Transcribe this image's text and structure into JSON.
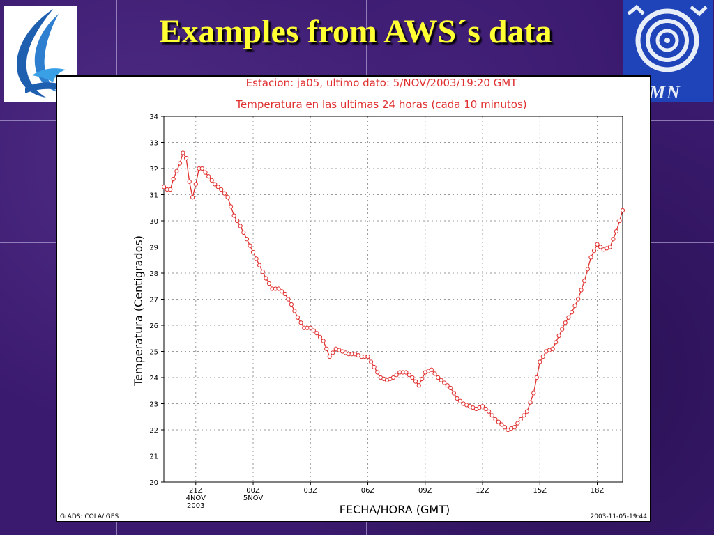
{
  "slide": {
    "title": "Examples from AWS´s data"
  },
  "logos": {
    "left_icon": "bird-wave-logo",
    "right_icon": "spiral-logo",
    "right_text": "MN"
  },
  "colors": {
    "background": "#3a1a6e",
    "title": "#ffff33",
    "series": "#e03030",
    "right_logo_bg": "#1f43b8"
  },
  "chart_data": {
    "type": "line",
    "title": "Estacion: ja05, ultimo dato: 5/NOV/2003/19:20 GMT",
    "subtitle": "Temperatura en las ultimas 24 horas (cada 10 minutos)",
    "xlabel": "FECHA/HORA (GMT)",
    "ylabel": "Temperatura (Centigrados)",
    "ylim": [
      20,
      34
    ],
    "yticks": [
      "20",
      "21",
      "22",
      "23",
      "24",
      "25",
      "26",
      "27",
      "28",
      "29",
      "30",
      "31",
      "32",
      "33",
      "34"
    ],
    "xlim_hours": [
      19.33,
      43.33
    ],
    "xticks": [
      {
        "hour": 21,
        "label": "21Z",
        "sub1": "4NOV",
        "sub2": "2003"
      },
      {
        "hour": 24,
        "label": "00Z",
        "sub1": "5NOV",
        "sub2": ""
      },
      {
        "hour": 27,
        "label": "03Z",
        "sub1": "",
        "sub2": ""
      },
      {
        "hour": 30,
        "label": "06Z",
        "sub1": "",
        "sub2": ""
      },
      {
        "hour": 33,
        "label": "09Z",
        "sub1": "",
        "sub2": ""
      },
      {
        "hour": 36,
        "label": "12Z",
        "sub1": "",
        "sub2": ""
      },
      {
        "hour": 39,
        "label": "15Z",
        "sub1": "",
        "sub2": ""
      },
      {
        "hour": 42,
        "label": "18Z",
        "sub1": "",
        "sub2": ""
      }
    ],
    "grid": true,
    "footer_left": "GrADS: COLA/IGES",
    "footer_right": "2003-11-05-19:44",
    "keypoints": [
      [
        19.33,
        31.3
      ],
      [
        19.5,
        31.2
      ],
      [
        19.67,
        31.2
      ],
      [
        19.83,
        31.6
      ],
      [
        20.0,
        31.9
      ],
      [
        20.17,
        32.2
      ],
      [
        20.33,
        32.6
      ],
      [
        20.5,
        32.4
      ],
      [
        20.67,
        31.5
      ],
      [
        20.83,
        30.9
      ],
      [
        21.0,
        31.4
      ],
      [
        21.17,
        32.0
      ],
      [
        21.33,
        32.0
      ],
      [
        21.67,
        31.7
      ],
      [
        22.0,
        31.4
      ],
      [
        22.33,
        31.2
      ],
      [
        22.67,
        30.9
      ],
      [
        23.0,
        30.2
      ],
      [
        23.33,
        29.8
      ],
      [
        23.67,
        29.3
      ],
      [
        24.0,
        28.8
      ],
      [
        24.33,
        28.3
      ],
      [
        24.67,
        27.8
      ],
      [
        25.0,
        27.4
      ],
      [
        25.33,
        27.4
      ],
      [
        25.67,
        27.2
      ],
      [
        26.0,
        26.8
      ],
      [
        26.33,
        26.3
      ],
      [
        26.67,
        25.9
      ],
      [
        27.0,
        25.9
      ],
      [
        27.33,
        25.7
      ],
      [
        27.67,
        25.4
      ],
      [
        28.0,
        24.8
      ],
      [
        28.33,
        25.1
      ],
      [
        28.67,
        25.0
      ],
      [
        29.0,
        24.9
      ],
      [
        29.33,
        24.9
      ],
      [
        29.67,
        24.8
      ],
      [
        30.0,
        24.8
      ],
      [
        30.33,
        24.4
      ],
      [
        30.67,
        24.0
      ],
      [
        31.0,
        23.9
      ],
      [
        31.33,
        24.0
      ],
      [
        31.67,
        24.2
      ],
      [
        32.0,
        24.2
      ],
      [
        32.33,
        24.0
      ],
      [
        32.67,
        23.7
      ],
      [
        33.0,
        24.2
      ],
      [
        33.33,
        24.3
      ],
      [
        33.67,
        24.0
      ],
      [
        34.0,
        23.8
      ],
      [
        34.33,
        23.6
      ],
      [
        34.67,
        23.2
      ],
      [
        35.0,
        23.0
      ],
      [
        35.33,
        22.9
      ],
      [
        35.67,
        22.8
      ],
      [
        36.0,
        22.9
      ],
      [
        36.33,
        22.7
      ],
      [
        36.67,
        22.4
      ],
      [
        37.0,
        22.2
      ],
      [
        37.33,
        22.0
      ],
      [
        37.67,
        22.1
      ],
      [
        38.0,
        22.4
      ],
      [
        38.33,
        22.7
      ],
      [
        38.67,
        23.4
      ],
      [
        39.0,
        24.6
      ],
      [
        39.33,
        25.0
      ],
      [
        39.67,
        25.1
      ],
      [
        40.0,
        25.6
      ],
      [
        40.33,
        26.1
      ],
      [
        40.67,
        26.5
      ],
      [
        41.0,
        27.0
      ],
      [
        41.33,
        27.7
      ],
      [
        41.67,
        28.6
      ],
      [
        42.0,
        29.1
      ],
      [
        42.33,
        28.9
      ],
      [
        42.67,
        29.0
      ],
      [
        43.0,
        29.6
      ],
      [
        43.33,
        30.4
      ]
    ]
  }
}
